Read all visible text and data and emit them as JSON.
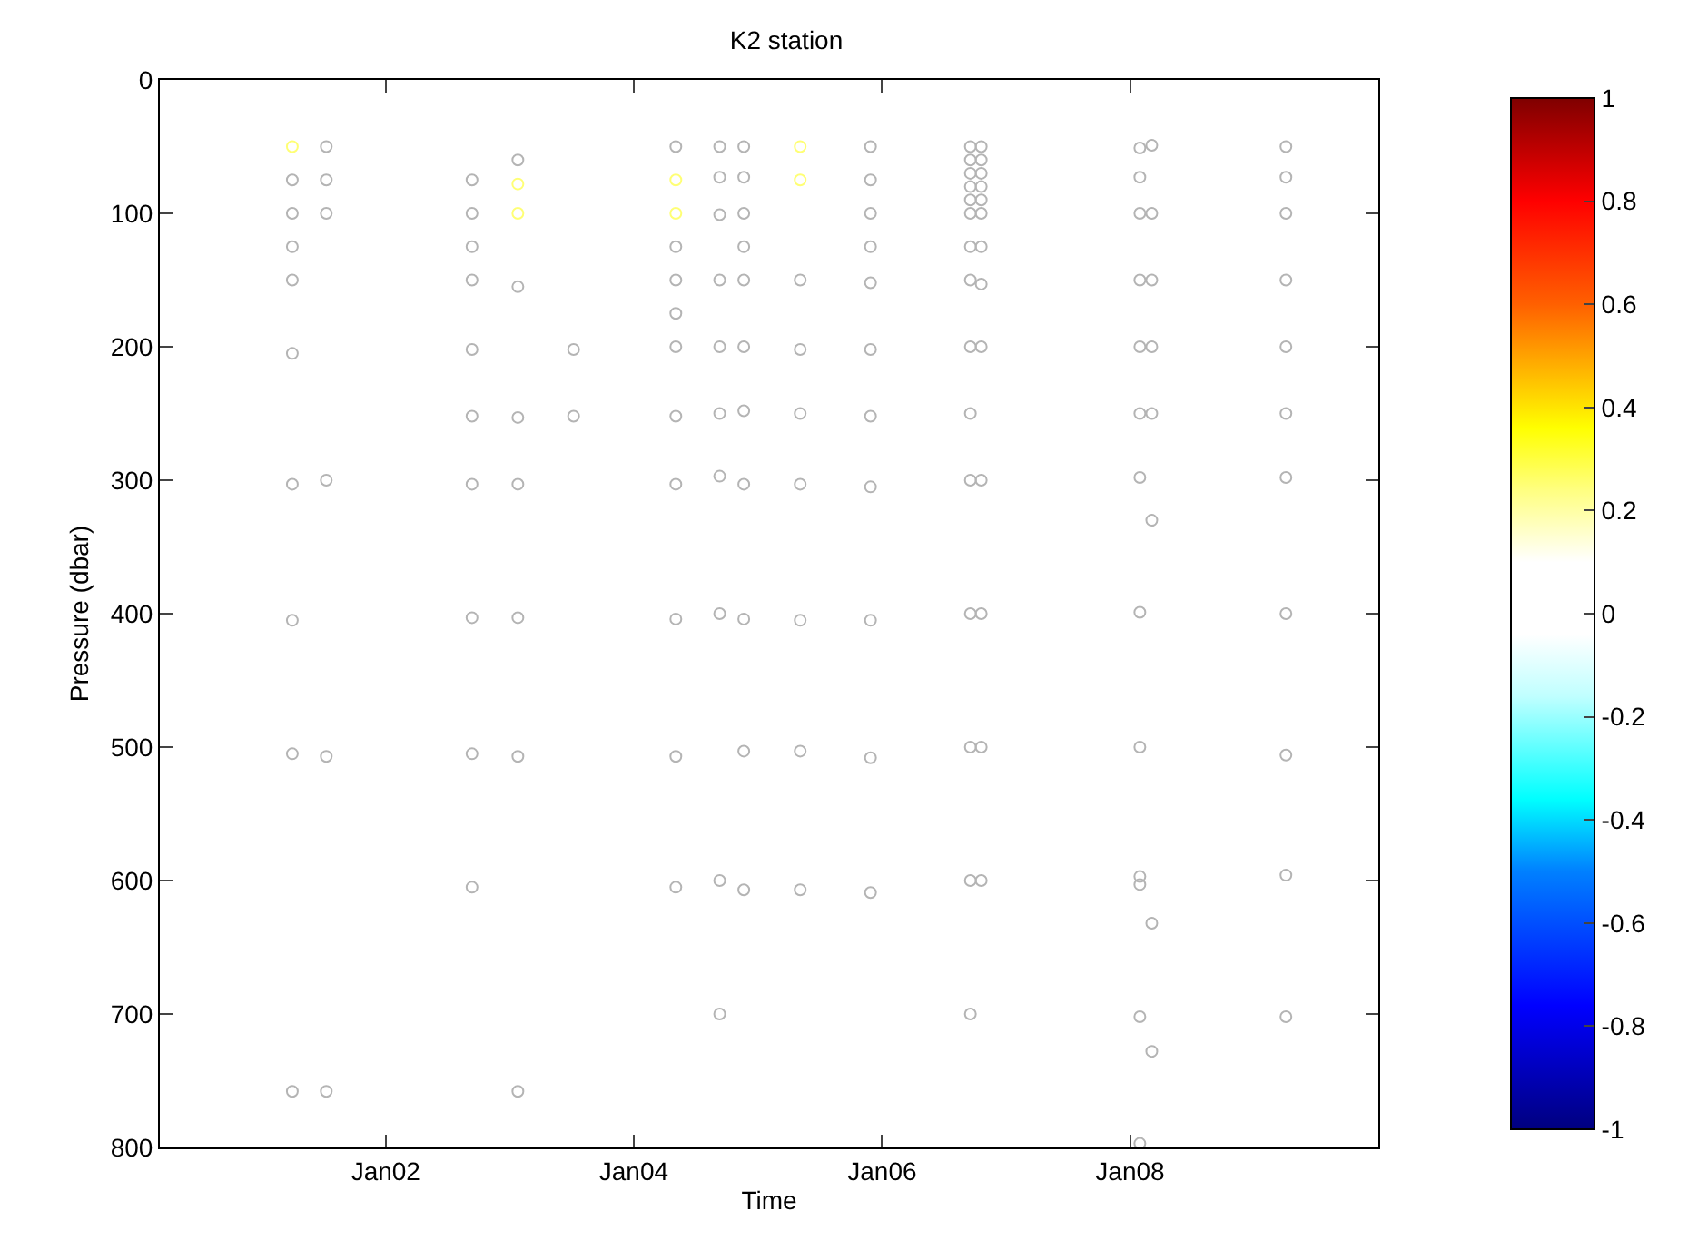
{
  "chart_data": {
    "type": "scatter",
    "title": "K2 station",
    "xlabel": "Time",
    "ylabel": "Pressure (dbar)",
    "xlim": [
      "2000-03-07",
      "2010-01-01"
    ],
    "xticks": [
      {
        "value": "2002-01-01",
        "label": "Jan02"
      },
      {
        "value": "2004-01-01",
        "label": "Jan04"
      },
      {
        "value": "2006-01-01",
        "label": "Jan06"
      },
      {
        "value": "2008-01-01",
        "label": "Jan08"
      }
    ],
    "ylim": [
      800,
      0
    ],
    "yticks": [
      0,
      100,
      200,
      300,
      400,
      500,
      600,
      700,
      800
    ],
    "clim": [
      -1,
      1
    ],
    "cticks": [
      -1,
      -0.8,
      -0.6,
      -0.4,
      -0.2,
      0,
      0.2,
      0.4,
      0.6,
      0.8,
      1
    ],
    "marker": "circle",
    "series": [
      {
        "color": "#b4b4b4",
        "x": [
          "2001-04-01",
          "2001-04-01",
          "2001-04-01",
          "2001-04-01",
          "2001-04-01",
          "2001-04-01",
          "2001-04-01",
          "2001-04-01",
          "2001-04-01",
          "2001-07-10",
          "2001-07-10",
          "2001-07-10",
          "2001-07-10",
          "2001-07-10",
          "2001-07-10",
          "2002-09-12",
          "2002-09-12",
          "2002-09-12",
          "2002-09-12",
          "2002-09-12",
          "2002-09-12",
          "2002-09-12",
          "2002-09-12",
          "2002-09-12",
          "2002-09-12",
          "2003-01-25",
          "2003-01-25",
          "2003-01-25",
          "2003-01-25",
          "2003-01-25",
          "2003-01-25",
          "2003-01-25",
          "2003-07-08",
          "2003-07-08",
          "2004-05-04",
          "2004-05-04",
          "2004-05-04",
          "2004-05-04",
          "2004-05-04",
          "2004-05-04",
          "2004-05-04",
          "2004-05-04",
          "2004-05-04",
          "2004-05-04",
          "2004-09-10",
          "2004-09-10",
          "2004-09-10",
          "2004-09-10",
          "2004-09-10",
          "2004-09-10",
          "2004-09-10",
          "2004-09-10",
          "2004-09-10",
          "2004-09-10",
          "2004-11-20",
          "2004-11-20",
          "2004-11-20",
          "2004-11-20",
          "2004-11-20",
          "2004-11-20",
          "2004-11-20",
          "2004-11-20",
          "2004-11-20",
          "2004-11-20",
          "2004-11-20",
          "2005-05-05",
          "2005-05-05",
          "2005-05-05",
          "2005-05-05",
          "2005-05-05",
          "2005-05-05",
          "2005-05-05",
          "2005-11-28",
          "2005-11-28",
          "2005-11-28",
          "2005-11-28",
          "2005-11-28",
          "2005-11-28",
          "2005-11-28",
          "2005-11-28",
          "2005-11-28",
          "2005-11-28",
          "2005-11-28",
          "2006-09-18",
          "2006-09-18",
          "2006-09-18",
          "2006-09-18",
          "2006-09-18",
          "2006-09-18",
          "2006-09-18",
          "2006-09-18",
          "2006-09-18",
          "2006-09-18",
          "2006-09-18",
          "2006-09-18",
          "2006-09-18",
          "2006-09-18",
          "2006-09-18",
          "2006-10-20",
          "2006-10-20",
          "2006-10-20",
          "2006-10-20",
          "2006-10-20",
          "2006-10-20",
          "2006-10-20",
          "2006-10-20",
          "2006-10-20",
          "2006-10-20",
          "2006-10-20",
          "2006-10-20",
          "2006-10-20",
          "2008-01-30",
          "2008-01-30",
          "2008-01-30",
          "2008-01-30",
          "2008-01-30",
          "2008-01-30",
          "2008-01-30",
          "2008-01-30",
          "2008-01-30",
          "2008-01-30",
          "2008-01-30",
          "2008-01-30",
          "2008-01-30",
          "2008-03-05",
          "2008-03-05",
          "2008-03-05",
          "2008-03-05",
          "2008-03-05",
          "2008-03-05",
          "2008-03-05",
          "2008-03-05",
          "2009-04-04",
          "2009-04-04",
          "2009-04-04",
          "2009-04-04",
          "2009-04-04",
          "2009-04-04",
          "2009-04-04",
          "2009-04-04",
          "2009-04-04",
          "2009-04-04",
          "2009-04-04"
        ],
        "values": [
          75,
          100,
          125,
          150,
          205,
          303,
          405,
          505,
          758,
          50,
          75,
          100,
          300,
          507,
          758,
          75,
          100,
          125,
          150,
          202,
          252,
          303,
          403,
          505,
          605,
          60,
          155,
          253,
          303,
          403,
          507,
          758,
          202,
          252,
          50,
          125,
          150,
          175,
          200,
          252,
          303,
          404,
          507,
          605,
          50,
          73,
          101,
          150,
          200,
          250,
          297,
          400,
          600,
          700,
          50,
          73,
          100,
          125,
          150,
          200,
          248,
          303,
          404,
          503,
          607,
          150,
          202,
          250,
          303,
          405,
          503,
          607,
          50,
          75,
          100,
          125,
          152,
          202,
          252,
          305,
          405,
          508,
          609,
          50,
          60,
          70,
          80,
          90,
          100,
          125,
          150,
          200,
          250,
          300,
          400,
          500,
          600,
          700,
          50,
          60,
          70,
          80,
          90,
          100,
          125,
          153,
          200,
          300,
          400,
          500,
          600,
          51,
          73,
          100,
          150,
          200,
          250,
          298,
          399,
          500,
          597,
          603,
          702,
          797,
          49,
          100,
          150,
          200,
          250,
          330,
          632,
          728,
          50,
          73,
          100,
          150,
          200,
          250,
          298,
          400,
          506,
          596,
          702
        ]
      },
      {
        "x": [
          "2001-04-01",
          "2003-01-25",
          "2003-01-25",
          "2004-05-04",
          "2004-05-04",
          "2005-05-05",
          "2005-05-05"
        ],
        "values": [
          50,
          78,
          100,
          75,
          100,
          50,
          75
        ],
        "cvalues": [
          0.25,
          0.25,
          0.25,
          0.25,
          0.25,
          0.25,
          0.25
        ]
      }
    ]
  }
}
